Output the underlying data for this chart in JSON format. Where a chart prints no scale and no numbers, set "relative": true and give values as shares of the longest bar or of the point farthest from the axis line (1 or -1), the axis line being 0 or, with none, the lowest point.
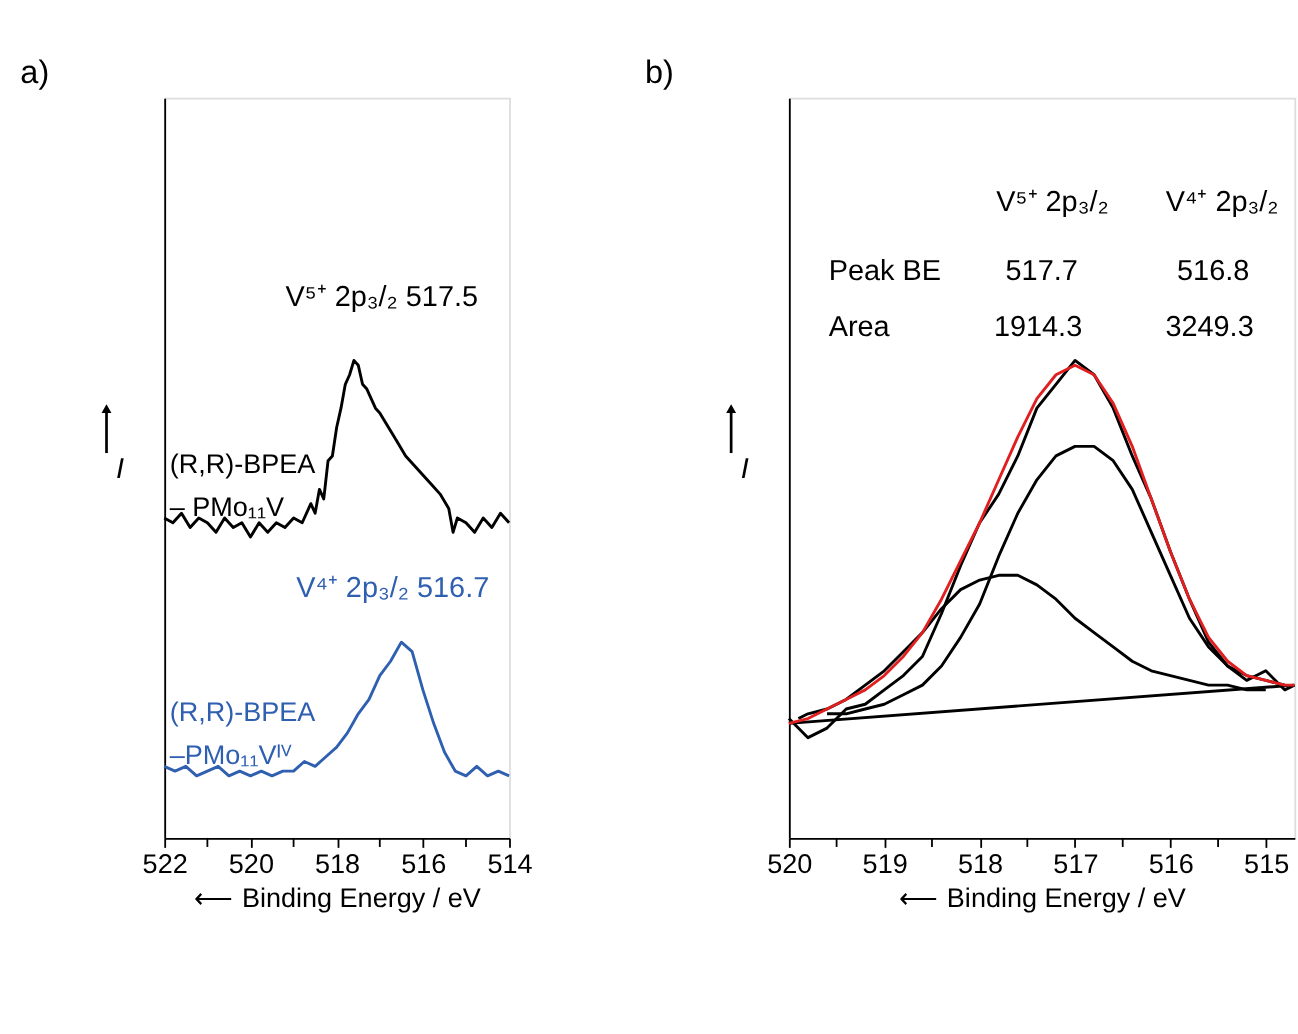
{
  "chart_data": [
    {
      "type": "line",
      "title": "a)",
      "xlabel": "⟵ Binding Energy / eV",
      "ylabel": "I",
      "relative": true,
      "tick_labels": "x",
      "xlim": [
        522,
        514
      ],
      "xticks": [
        522,
        {
          "value": 521,
          "label": null
        },
        520,
        {
          "value": 519,
          "label": null
        },
        518,
        {
          "value": 517,
          "label": null
        },
        516,
        {
          "value": 515,
          "label": null
        },
        514
      ],
      "series": [
        {
          "name": "(R,R)-BPEA – PMo₁₁V",
          "color": "#000000",
          "x": [
            522,
            521.8,
            521.6,
            521.4,
            521.2,
            521,
            520.8,
            520.6,
            520.4,
            520.2,
            520,
            519.8,
            519.6,
            519.4,
            519.2,
            519,
            518.8,
            518.6,
            518.5,
            518.4,
            518.3,
            518.2,
            518.1,
            518,
            517.9,
            517.8,
            517.7,
            517.6,
            517.5,
            517.4,
            517.3,
            517.2,
            517.1,
            517,
            516.8,
            516.6,
            516.4,
            516.2,
            516,
            515.8,
            515.6,
            515.4,
            515.3,
            515.2,
            515,
            514.8,
            514.6,
            514.4,
            514.2,
            514
          ],
          "values": [
            0.67,
            0.66,
            0.68,
            0.65,
            0.67,
            0.66,
            0.64,
            0.67,
            0.65,
            0.66,
            0.63,
            0.66,
            0.64,
            0.66,
            0.65,
            0.67,
            0.66,
            0.7,
            0.68,
            0.73,
            0.71,
            0.79,
            0.8,
            0.86,
            0.9,
            0.95,
            0.97,
            1.0,
            0.99,
            0.95,
            0.94,
            0.92,
            0.9,
            0.89,
            0.86,
            0.83,
            0.8,
            0.78,
            0.76,
            0.74,
            0.72,
            0.69,
            0.64,
            0.67,
            0.66,
            0.64,
            0.67,
            0.65,
            0.68,
            0.66
          ]
        },
        {
          "name": "(R,R)-BPEA –PMo₁₁Vᴵⱽ",
          "color": "#2e5fb0",
          "x": [
            522,
            521.75,
            521.5,
            521.25,
            521,
            520.75,
            520.5,
            520.25,
            520,
            519.75,
            519.5,
            519.25,
            519,
            518.75,
            518.5,
            518.25,
            518,
            517.75,
            517.5,
            517.25,
            517,
            516.75,
            516.5,
            516.25,
            516,
            515.75,
            515.5,
            515.25,
            515,
            514.75,
            514.5,
            514.25,
            514
          ],
          "values": [
            0.15,
            0.14,
            0.15,
            0.13,
            0.14,
            0.15,
            0.13,
            0.14,
            0.13,
            0.14,
            0.13,
            0.14,
            0.14,
            0.16,
            0.15,
            0.17,
            0.19,
            0.22,
            0.26,
            0.29,
            0.34,
            0.37,
            0.41,
            0.39,
            0.31,
            0.24,
            0.18,
            0.14,
            0.13,
            0.15,
            0.13,
            0.14,
            0.13
          ]
        }
      ],
      "annotations": [
        {
          "text": "V⁵⁺ 2p₃/₂ 517.5",
          "x": 517.5,
          "y": 0.99
        },
        {
          "text": "V⁴⁺ 2p₃/₂ 516.7",
          "x": 516.7,
          "y": 0.38
        }
      ]
    },
    {
      "type": "line",
      "title": "b)",
      "xlabel": "⟵ Binding Energy / eV",
      "ylabel": "I",
      "relative": true,
      "tick_labels": "x",
      "xlim": [
        520,
        514.7
      ],
      "xticks": [
        520,
        {
          "value": 519.5,
          "label": null
        },
        519,
        {
          "value": 518.5,
          "label": null
        },
        518,
        {
          "value": 517.5,
          "label": null
        },
        517,
        {
          "value": 516.5,
          "label": null
        },
        516,
        {
          "value": 515.5,
          "label": null
        },
        515
      ],
      "series": [
        {
          "color": "#000000",
          "x": [
            520,
            519.8,
            519.6,
            519.4,
            519.2,
            519,
            518.8,
            518.6,
            518.4,
            518.2,
            518,
            517.8,
            517.6,
            517.4,
            517.2,
            517,
            516.8,
            516.6,
            516.4,
            516.2,
            516,
            515.8,
            515.6,
            515.4,
            515.2,
            515,
            514.8,
            514.7
          ],
          "values": [
            0.25,
            0.21,
            0.23,
            0.27,
            0.28,
            0.31,
            0.34,
            0.38,
            0.47,
            0.57,
            0.66,
            0.72,
            0.8,
            0.9,
            0.95,
            1.0,
            0.97,
            0.9,
            0.8,
            0.71,
            0.6,
            0.5,
            0.41,
            0.36,
            0.33,
            0.35,
            0.31,
            0.32
          ]
        },
        {
          "color": "#000000",
          "x": [
            519.9,
            519.8,
            519.6,
            519.4,
            519.2,
            519,
            518.8,
            518.6,
            518.4,
            518.2,
            518,
            517.8,
            517.6,
            517.4,
            517.2,
            517,
            516.8,
            516.6,
            516.4,
            516.2,
            516,
            515.8,
            515.6,
            515.4,
            515.2,
            515
          ],
          "values": [
            0.25,
            0.26,
            0.27,
            0.29,
            0.32,
            0.35,
            0.39,
            0.43,
            0.48,
            0.52,
            0.54,
            0.55,
            0.55,
            0.53,
            0.5,
            0.46,
            0.43,
            0.4,
            0.37,
            0.35,
            0.34,
            0.33,
            0.32,
            0.32,
            0.31,
            0.31
          ]
        },
        {
          "color": "#000000",
          "x": [
            519.6,
            519.4,
            519.2,
            519,
            518.8,
            518.6,
            518.4,
            518.2,
            518,
            517.8,
            517.6,
            517.4,
            517.2,
            517,
            516.8,
            516.6,
            516.4,
            516.2,
            516,
            515.8,
            515.6,
            515.4,
            515.2,
            515,
            514.8
          ],
          "values": [
            0.26,
            0.26,
            0.27,
            0.28,
            0.3,
            0.32,
            0.36,
            0.42,
            0.49,
            0.59,
            0.68,
            0.75,
            0.8,
            0.82,
            0.82,
            0.79,
            0.73,
            0.64,
            0.55,
            0.46,
            0.4,
            0.36,
            0.34,
            0.33,
            0.32
          ]
        },
        {
          "color": "#000000",
          "x": [
            520,
            514.7
          ],
          "values": [
            0.24,
            0.32
          ]
        },
        {
          "color": "#e02020",
          "x": [
            520,
            519.8,
            519.6,
            519.4,
            519.2,
            519,
            518.8,
            518.6,
            518.4,
            518.2,
            518,
            517.8,
            517.6,
            517.4,
            517.2,
            517,
            516.8,
            516.6,
            516.4,
            516.2,
            516,
            515.8,
            515.6,
            515.4,
            515.2,
            515,
            514.8,
            514.7
          ],
          "values": [
            0.24,
            0.25,
            0.27,
            0.29,
            0.31,
            0.34,
            0.38,
            0.43,
            0.5,
            0.58,
            0.66,
            0.75,
            0.84,
            0.92,
            0.97,
            0.99,
            0.97,
            0.91,
            0.82,
            0.71,
            0.6,
            0.5,
            0.42,
            0.37,
            0.34,
            0.33,
            0.32,
            0.32
          ]
        }
      ],
      "annotations": [
        "V⁵⁺ 2p₃/₂",
        "V⁴⁺ 2p₃/₂",
        "Peak BE",
        "517.7",
        "516.8",
        "Area",
        "1914.3",
        "3249.3"
      ]
    }
  ]
}
